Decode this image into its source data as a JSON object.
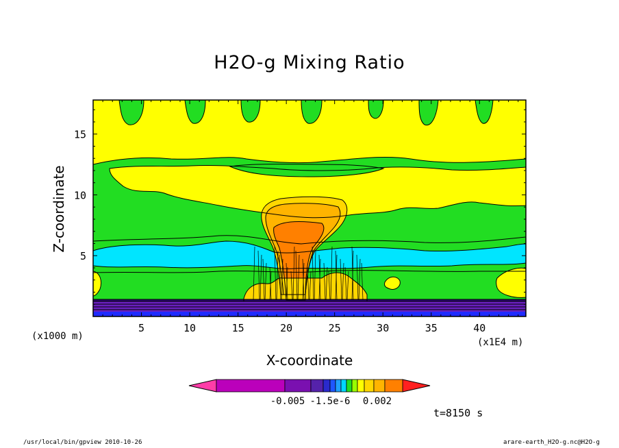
{
  "figure": {
    "title": "H2O-g Mixing Ratio",
    "time_label": "t=8150 s",
    "x_unit_label": "(x1000 m)",
    "x_multiplier_label": "(x1E4 m)",
    "footer_left": "/usr/local/bin/gpview  2010-10-26",
    "footer_right": "arare-earth_H2O-g.nc@H2O-g"
  },
  "colors": {
    "background_field": "#22dd22",
    "upper_band": "#ffff00",
    "moist_layer": "#00e5ff",
    "anvil_outer": "#ffd700",
    "anvil_inner": "#ffb400",
    "core": "#ff8000",
    "surface_violet": "#6a1fbf",
    "surface_blue": "#1f2bff"
  },
  "chart_data": {
    "type": "heatmap",
    "title": "H2O-g Mixing Ratio",
    "xlabel": "X-coordinate",
    "ylabel": "Z-coordinate",
    "xlim": [
      0,
      44.8
    ],
    "ylim": [
      0,
      17.8
    ],
    "xticks": [
      5,
      10,
      15,
      20,
      25,
      30,
      35,
      40
    ],
    "yticks": [
      5,
      10,
      15
    ],
    "colorbar": {
      "colors": [
        "#ff3ca8",
        "#bb00bb",
        "#7a10b0",
        "#5522aa",
        "#2a2acc",
        "#1f57ff",
        "#1fa0ff",
        "#00d6ff",
        "#22dd22",
        "#99ff00",
        "#ffff00",
        "#ffd700",
        "#ffb400",
        "#ff8000",
        "#ff2020"
      ],
      "labels": [
        "-0.005",
        "-1.5e-6",
        "0.002"
      ]
    }
  }
}
